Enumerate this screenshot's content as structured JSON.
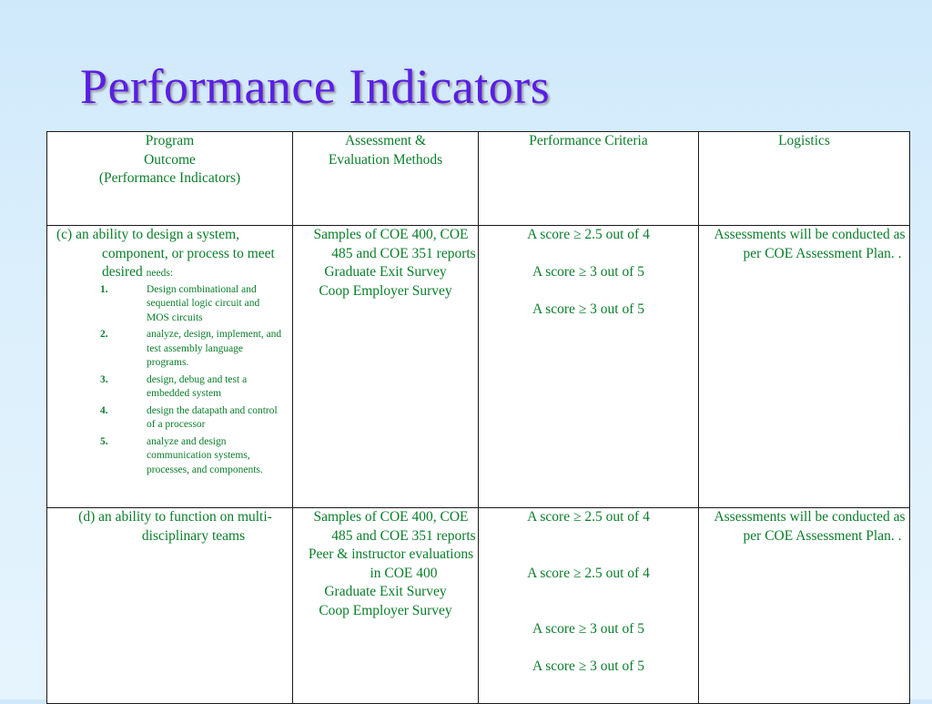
{
  "title": "Performance Indicators",
  "headers": {
    "outcome": [
      "Program",
      "Outcome",
      "(Performance Indicators)"
    ],
    "assessment": [
      "Assessment &",
      "Evaluation Methods"
    ],
    "criteria": "Performance Criteria",
    "logistics": "Logistics"
  },
  "row_c": {
    "outcome_main": "(c) an ability to design a system, component, or process to meet desired",
    "outcome_suffix": "needs:",
    "needs": [
      {
        "n": "1.",
        "text": "Design combinational and sequential logic circuit and MOS circuits"
      },
      {
        "n": "2.",
        "text": " analyze, design, implement, and test assembly language programs."
      },
      {
        "n": "3.",
        "text": " design, debug and test a embedded system"
      },
      {
        "n": "4.",
        "text": "design the datapath and control of a processor"
      },
      {
        "n": "5.",
        "text": "analyze and design communication systems, processes, and components."
      }
    ],
    "methods": [
      "Samples of COE 400, COE 485 and COE 351 reports",
      "Graduate Exit Survey",
      "Coop  Employer Survey"
    ],
    "criteria": [
      "A score ≥ 2.5 out of 4",
      "A score ≥ 3 out of 5",
      "A score ≥ 3 out of 5"
    ],
    "logistics": "Assessments will be conducted as per COE Assessment Plan. ."
  },
  "row_d": {
    "outcome": "(d) an ability to function on multi-disciplinary teams",
    "methods": [
      "Samples of COE 400, COE 485 and COE 351 reports",
      "Peer & instructor evaluations in COE 400",
      "Graduate Exit Survey",
      "Coop  Employer Survey"
    ],
    "criteria": [
      "A score ≥ 2.5 out of 4",
      "A score ≥ 2.5 out of 4",
      "A score ≥ 3 out of 5",
      "A score ≥ 3 out of 5"
    ],
    "logistics": "Assessments will be conducted as per COE Assessment Plan. ."
  },
  "colors": {
    "title": "#5a1ee6",
    "body_text": "#0a7d2a",
    "background": "#d8eefc"
  }
}
